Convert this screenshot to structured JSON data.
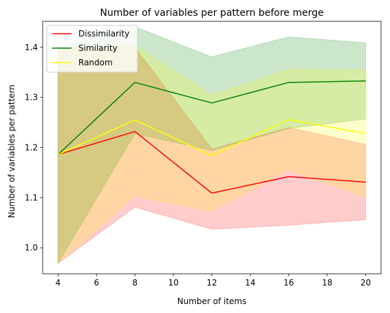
{
  "chart_data": {
    "type": "line",
    "title": "Number of variables per pattern before merge",
    "xlabel": "Number of items",
    "ylabel": "Number of variables per pattern",
    "xlim": [
      3.2,
      20.8
    ],
    "ylim": [
      0.948,
      1.452
    ],
    "xticks": [
      4,
      6,
      8,
      10,
      12,
      14,
      16,
      18,
      20
    ],
    "yticks": [
      1.0,
      1.1,
      1.2,
      1.3,
      1.4
    ],
    "ytick_labels": [
      "1.0",
      "1.1",
      "1.2",
      "1.3",
      "1.4"
    ],
    "grid": false,
    "legend_position": "top-left",
    "x": [
      4,
      8,
      12,
      16,
      20
    ],
    "series": [
      {
        "name": "Dissimilarity",
        "color": "#ff0000",
        "band_color": "#ff0000",
        "values": [
          1.186,
          1.232,
          1.109,
          1.142,
          1.131
        ],
        "lower": [
          0.969,
          1.081,
          1.037,
          1.045,
          1.056
        ],
        "upper": [
          1.4,
          1.4,
          1.197,
          1.24,
          1.206
        ]
      },
      {
        "name": "Similarity",
        "color": "#008000",
        "band_color": "#008000",
        "values": [
          1.186,
          1.33,
          1.289,
          1.33,
          1.333
        ],
        "lower": [
          0.969,
          1.228,
          1.194,
          1.238,
          1.257
        ],
        "upper": [
          1.4,
          1.441,
          1.381,
          1.421,
          1.409
        ]
      },
      {
        "name": "Random",
        "color": "#ffff00",
        "band_color": "#ffff00",
        "values": [
          1.186,
          1.255,
          1.184,
          1.256,
          1.228
        ],
        "lower": [
          0.969,
          1.103,
          1.073,
          1.155,
          1.101
        ],
        "upper": [
          1.4,
          1.404,
          1.305,
          1.356,
          1.355
        ]
      }
    ]
  }
}
